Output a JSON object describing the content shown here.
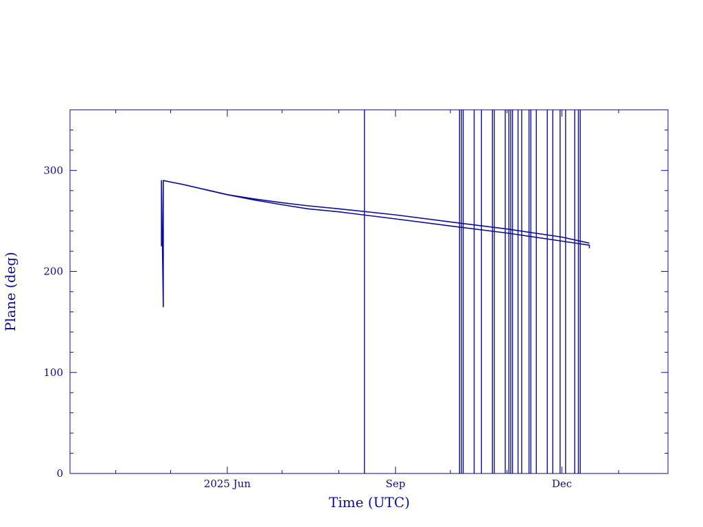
{
  "chart_data": {
    "type": "line",
    "title": "",
    "xlabel": "Time (UTC)",
    "ylabel": "Plane (deg)",
    "x_tick_labels": [
      {
        "date": "2025-06-01",
        "label": "2025 Jun"
      },
      {
        "date": "2025-09-01",
        "label": "Sep"
      },
      {
        "date": "2025-12-01",
        "label": "Dec"
      }
    ],
    "y_tick_labels": [
      "0",
      "100",
      "200",
      "300"
    ],
    "xlim": [
      "2025-03-07",
      "2026-01-28"
    ],
    "ylim": [
      0,
      360
    ],
    "grid": false,
    "color": "#0a0a96",
    "series": [
      {
        "points": [
          [
            "2025-04-26",
            225
          ],
          [
            "2025-04-26",
            290
          ],
          [
            "2025-04-27",
            165
          ],
          [
            "2025-04-27",
            290
          ],
          [
            "2025-05-08",
            286
          ],
          [
            "2025-05-20",
            281
          ],
          [
            "2025-06-01",
            276
          ],
          [
            "2025-06-15",
            271
          ],
          [
            "2025-07-01",
            266
          ],
          [
            "2025-07-15",
            262
          ],
          [
            "2025-08-01",
            259
          ],
          [
            "2025-09-01",
            252
          ],
          [
            "2025-10-01",
            245
          ],
          [
            "2025-11-01",
            238
          ],
          [
            "2025-12-01",
            230
          ],
          [
            "2025-12-16",
            226
          ],
          [
            "2025-12-16",
            223
          ]
        ]
      },
      {
        "points": [
          [
            "2025-05-20",
            281
          ],
          [
            "2025-06-01",
            276
          ],
          [
            "2025-06-15",
            272
          ],
          [
            "2025-07-01",
            268
          ],
          [
            "2025-07-15",
            265
          ],
          [
            "2025-08-01",
            262
          ],
          [
            "2025-09-01",
            256
          ],
          [
            "2025-10-01",
            249
          ],
          [
            "2025-11-01",
            242
          ],
          [
            "2025-12-01",
            234
          ],
          [
            "2025-12-16",
            228
          ]
        ]
      }
    ],
    "vertical_lines": [
      "2025-08-15",
      "2025-10-06",
      "2025-10-07",
      "2025-10-08",
      "2025-10-14",
      "2025-10-18",
      "2025-10-24",
      "2025-10-25",
      "2025-10-31",
      "2025-11-02",
      "2025-11-03",
      "2025-11-04",
      "2025-11-07",
      "2025-11-09",
      "2025-11-13",
      "2025-11-14",
      "2025-11-17",
      "2025-11-23",
      "2025-11-26",
      "2025-11-30",
      "2025-12-03",
      "2025-12-08",
      "2025-12-10",
      "2025-12-11"
    ]
  }
}
